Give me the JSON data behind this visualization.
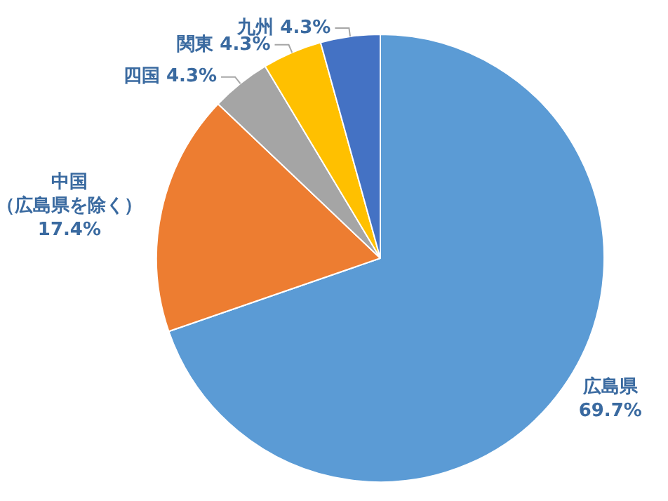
{
  "chart_data": {
    "type": "pie",
    "categories": [
      "広島県",
      "中国（広島県を除く）",
      "四国",
      "関東",
      "九州"
    ],
    "values": [
      69.7,
      17.4,
      4.3,
      4.3,
      4.3
    ],
    "value_labels": [
      "69.7%",
      "17.4%",
      "4.3%",
      "4.3%",
      "4.3%"
    ],
    "colors": [
      "#5b9bd5",
      "#ed7d31",
      "#a5a5a5",
      "#ffc000",
      "#4472c4"
    ],
    "legend": false
  }
}
